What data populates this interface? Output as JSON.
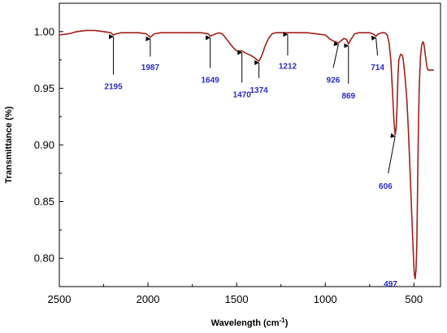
{
  "chart_data": {
    "type": "line",
    "title": "",
    "xlabel": "Wavelength (cm",
    "xlabel_sup": "-1",
    "xlabel_end": ")",
    "ylabel": "Transmittance (%)",
    "xlim": [
      2500,
      350
    ],
    "ylim": [
      0.775,
      1.025
    ],
    "x_ticks": [
      2500,
      2000,
      1500,
      1000,
      500
    ],
    "x_tick_labels": [
      "2500",
      "2000",
      "1500",
      "1000",
      "500"
    ],
    "y_ticks": [
      1.0,
      0.95,
      0.9,
      0.85,
      0.8
    ],
    "y_tick_labels": [
      "1.00",
      "0.95",
      "0.90",
      "0.85",
      "0.80"
    ],
    "line_color": "#a0201a",
    "annotation_color": "#2a2ad0",
    "series": [
      {
        "x": [
          2500,
          2450,
          2400,
          2350,
          2300,
          2250,
          2210,
          2195,
          2180,
          2150,
          2100,
          2050,
          2010,
          1987,
          1965,
          1930,
          1900,
          1850,
          1800,
          1750,
          1700,
          1660,
          1649,
          1635,
          1600,
          1580,
          1560,
          1540,
          1520,
          1500,
          1480,
          1470,
          1450,
          1420,
          1400,
          1385,
          1374,
          1360,
          1340,
          1320,
          1300,
          1280,
          1260,
          1240,
          1212,
          1190,
          1150,
          1100,
          1050,
          1000,
          970,
          945,
          926,
          910,
          895,
          880,
          869,
          855,
          835,
          810,
          790,
          770,
          750,
          730,
          714,
          700,
          680,
          665,
          650,
          640,
          630,
          620,
          612,
          606,
          600,
          595,
          590,
          585,
          575,
          565,
          560,
          550,
          540,
          530,
          520,
          510,
          505,
          500,
          497,
          493,
          488,
          484,
          480,
          476,
          470,
          463,
          456,
          450,
          445,
          440,
          432,
          425,
          420,
          410,
          400,
          390
        ],
        "y": [
          0.997,
          0.998,
          1.0,
          1.001,
          1.001,
          1.0,
          0.999,
          0.997,
          0.998,
          0.999,
          0.999,
          0.999,
          0.998,
          0.995,
          0.998,
          0.999,
          0.999,
          0.999,
          0.999,
          0.999,
          0.999,
          0.998,
          0.996,
          0.997,
          0.999,
          0.998,
          0.994,
          0.99,
          0.986,
          0.983,
          0.983,
          0.983,
          0.981,
          0.979,
          0.977,
          0.975,
          0.974,
          0.978,
          0.987,
          0.994,
          0.998,
          0.999,
          0.999,
          0.999,
          0.999,
          0.999,
          0.999,
          0.999,
          0.998,
          0.997,
          0.993,
          0.991,
          0.99,
          0.992,
          0.994,
          0.993,
          0.989,
          0.993,
          0.998,
          0.999,
          0.999,
          0.999,
          0.999,
          0.998,
          0.996,
          0.998,
          0.999,
          0.999,
          0.997,
          0.99,
          0.975,
          0.945,
          0.92,
          0.909,
          0.915,
          0.935,
          0.96,
          0.975,
          0.98,
          0.979,
          0.975,
          0.96,
          0.94,
          0.91,
          0.87,
          0.83,
          0.81,
          0.793,
          0.785,
          0.782,
          0.79,
          0.81,
          0.85,
          0.9,
          0.95,
          0.978,
          0.988,
          0.991,
          0.99,
          0.985,
          0.975,
          0.968,
          0.966,
          0.966,
          0.966,
          0.966
        ]
      }
    ],
    "annotations": [
      {
        "label": "2195",
        "peak_x": 2195,
        "peak_y": 0.997,
        "label_x": 2195,
        "label_y": 0.952,
        "arrow_from_x": 2195,
        "arrow_from_y": 0.962
      },
      {
        "label": "1987",
        "peak_x": 1987,
        "peak_y": 0.995,
        "label_x": 1987,
        "label_y": 0.969,
        "arrow_from_x": 1987,
        "arrow_from_y": 0.978
      },
      {
        "label": "1649",
        "peak_x": 1649,
        "peak_y": 0.996,
        "label_x": 1649,
        "label_y": 0.958,
        "arrow_from_x": 1649,
        "arrow_from_y": 0.968
      },
      {
        "label": "1470",
        "peak_x": 1470,
        "peak_y": 0.983,
        "label_x": 1470,
        "label_y": 0.945,
        "arrow_from_x": 1470,
        "arrow_from_y": 0.955
      },
      {
        "label": "1374",
        "peak_x": 1374,
        "peak_y": 0.974,
        "label_x": 1374,
        "label_y": 0.949,
        "arrow_from_x": 1374,
        "arrow_from_y": 0.959
      },
      {
        "label": "1212",
        "peak_x": 1212,
        "peak_y": 0.999,
        "label_x": 1212,
        "label_y": 0.97,
        "arrow_from_x": 1212,
        "arrow_from_y": 0.979
      },
      {
        "label": "926",
        "peak_x": 926,
        "peak_y": 0.99,
        "label_x": 955,
        "label_y": 0.958,
        "arrow_from_x": 955,
        "arrow_from_y": 0.968
      },
      {
        "label": "869",
        "peak_x": 869,
        "peak_y": 0.989,
        "label_x": 869,
        "label_y": 0.944,
        "arrow_from_x": 869,
        "arrow_from_y": 0.954
      },
      {
        "label": "714",
        "peak_x": 714,
        "peak_y": 0.996,
        "label_x": 705,
        "label_y": 0.969,
        "arrow_from_x": 705,
        "arrow_from_y": 0.979
      },
      {
        "label": "606",
        "peak_x": 606,
        "peak_y": 0.909,
        "label_x": 660,
        "label_y": 0.864,
        "arrow_from_x": 645,
        "arrow_from_y": 0.875
      },
      {
        "label": "497",
        "peak_x": 497,
        "peak_y": 0.782,
        "label_x": 632,
        "label_y": 0.778,
        "arrow_from_x": null,
        "arrow_from_y": null
      }
    ],
    "grid": false,
    "legend": "none"
  }
}
